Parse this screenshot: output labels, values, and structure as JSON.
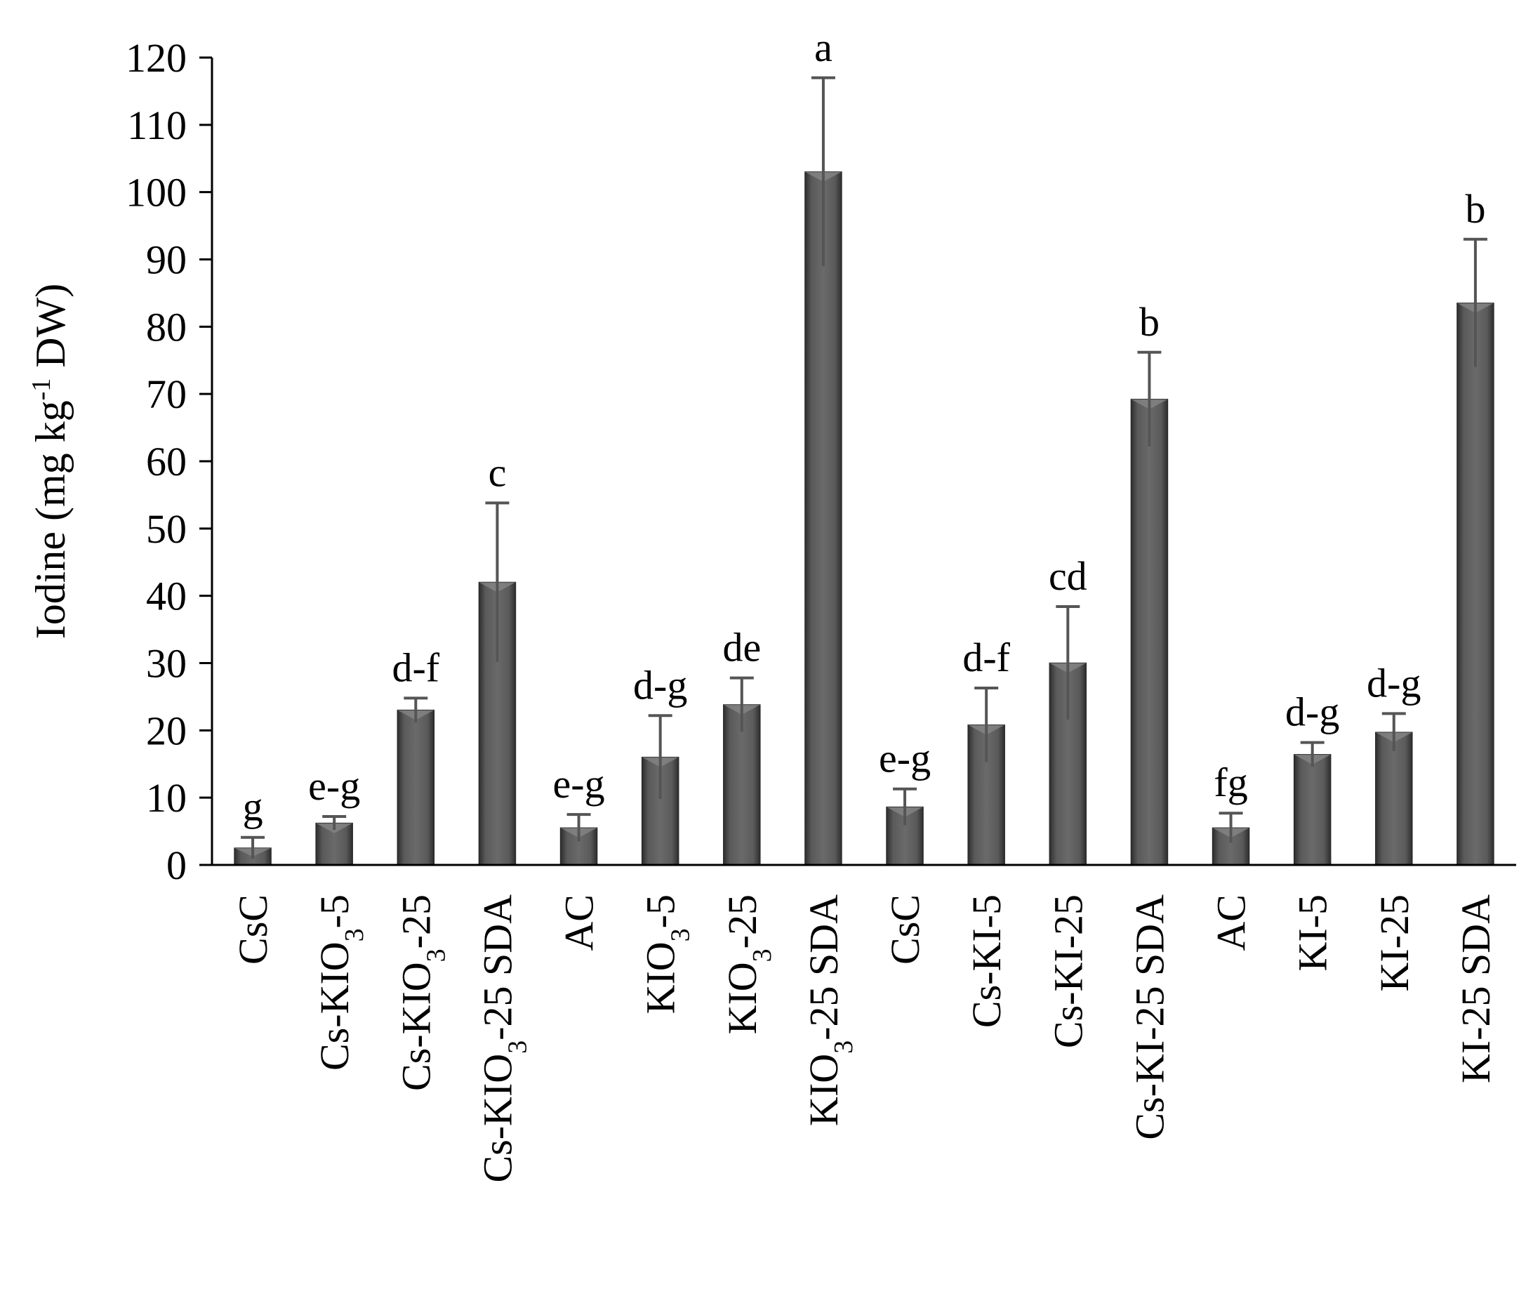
{
  "chart_data": {
    "type": "bar",
    "ylabel": "Iodine (mg kg-1 DW)",
    "ylabel_parts": {
      "before": "Iodine (mg kg",
      "superscript": "-1",
      "after": " DW)"
    },
    "ylim": [
      0,
      120
    ],
    "yticks": [
      0,
      10,
      20,
      30,
      40,
      50,
      60,
      70,
      80,
      90,
      100,
      110,
      120
    ],
    "grid": false,
    "legend": "none",
    "bar_color": "#4a4a4a",
    "error_bar_color": "#555555",
    "categories": [
      "CsC",
      "Cs-KIO3-5",
      "Cs-KIO3-25",
      "Cs-KIO3-25 SDA",
      "AC",
      "KIO3-5",
      "KIO3-25",
      "KIO3-25 SDA",
      "CsC",
      "Cs-KI-5",
      "Cs-KI-25",
      "Cs-KI-25 SDA",
      "AC",
      "KI-5",
      "KI-25",
      "KI-25 SDA"
    ],
    "category_labels": [
      [
        {
          "t": "CsC"
        }
      ],
      [
        {
          "t": "Cs-KIO"
        },
        {
          "t": "3",
          "sub": true
        },
        {
          "t": "-5"
        }
      ],
      [
        {
          "t": "Cs-KIO"
        },
        {
          "t": "3",
          "sub": true
        },
        {
          "t": "-25"
        }
      ],
      [
        {
          "t": "Cs-KIO"
        },
        {
          "t": "3",
          "sub": true
        },
        {
          "t": "-25 SDA"
        }
      ],
      [
        {
          "t": "AC"
        }
      ],
      [
        {
          "t": "KIO"
        },
        {
          "t": "3",
          "sub": true
        },
        {
          "t": "-5"
        }
      ],
      [
        {
          "t": "KIO"
        },
        {
          "t": "3",
          "sub": true
        },
        {
          "t": "-25"
        }
      ],
      [
        {
          "t": "KIO"
        },
        {
          "t": "3",
          "sub": true
        },
        {
          "t": "-25  SDA"
        }
      ],
      [
        {
          "t": "CsC"
        }
      ],
      [
        {
          "t": "Cs-KI-5"
        }
      ],
      [
        {
          "t": "Cs-KI-25"
        }
      ],
      [
        {
          "t": "Cs-KI-25  SDA"
        }
      ],
      [
        {
          "t": "AC"
        }
      ],
      [
        {
          "t": "KI-5"
        }
      ],
      [
        {
          "t": "KI-25"
        }
      ],
      [
        {
          "t": "KI-25 SDA"
        }
      ]
    ],
    "values": [
      2.5,
      6.2,
      23,
      42,
      5.5,
      16,
      23.8,
      103,
      8.6,
      20.8,
      30,
      69.2,
      5.5,
      16.4,
      19.7,
      83.5
    ],
    "errors": [
      1.6,
      1.0,
      1.8,
      11.8,
      2.0,
      6.2,
      4.0,
      14.0,
      2.7,
      5.5,
      8.4,
      7.0,
      2.2,
      1.8,
      2.8,
      9.5
    ],
    "significance": [
      "g",
      "e-g",
      "d-f",
      "c",
      "e-g",
      "d-g",
      "de",
      "a",
      "e-g",
      "d-f",
      "cd",
      "b",
      "fg",
      "d-g",
      "d-g",
      "b"
    ]
  }
}
